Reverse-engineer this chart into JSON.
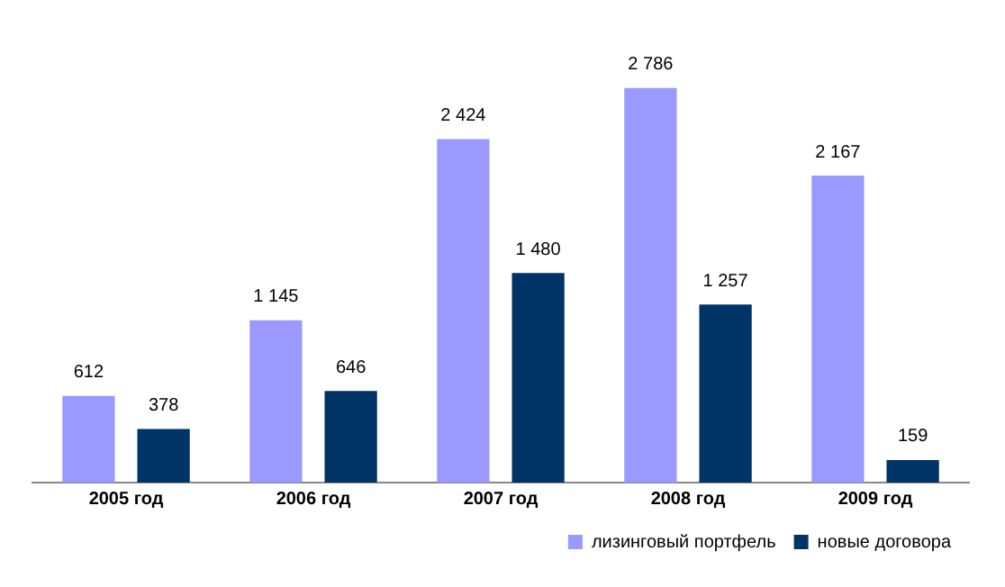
{
  "chart_data": {
    "type": "bar",
    "categories": [
      "2005 год",
      "2006 год",
      "2007 год",
      "2008 год",
      "2009 год"
    ],
    "series": [
      {
        "name": "лизинговый портфель",
        "color": "#9999ff",
        "values": [
          612,
          1145,
          2424,
          2786,
          2167
        ],
        "value_labels": [
          "612",
          "1 145",
          "2 424",
          "2 786",
          "2 167"
        ]
      },
      {
        "name": "новые договора",
        "color": "#003366",
        "values": [
          378,
          646,
          1480,
          1257,
          159
        ],
        "value_labels": [
          "378",
          "646",
          "1 480",
          "1 257",
          "159"
        ]
      }
    ],
    "legend": "bottom right",
    "grid": false
  }
}
